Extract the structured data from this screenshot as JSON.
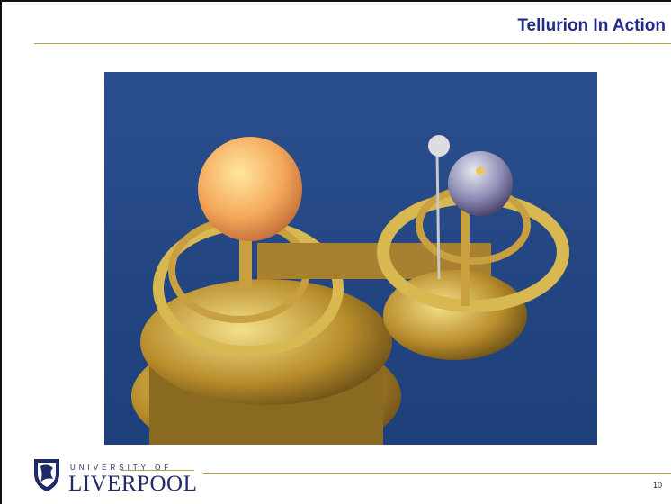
{
  "header": {
    "title": "Tellurion In Action"
  },
  "footer": {
    "logo_top": "UNIVERSITY OF",
    "logo_name": "LIVERPOOL",
    "page_number": "10"
  }
}
